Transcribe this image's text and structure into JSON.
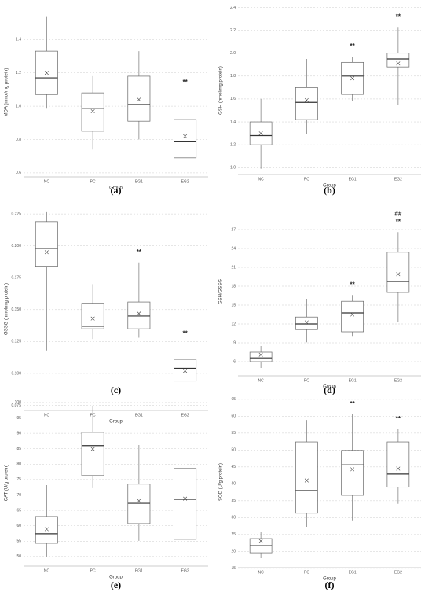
{
  "chart_data": [
    {
      "type": "box",
      "panel": "(a)",
      "ylabel": "MDA (nmol/mg protein)",
      "xlabel": "Group",
      "categories": [
        "NC",
        "PC",
        "EG1",
        "EG2"
      ],
      "min": [
        0.99,
        0.74,
        0.8,
        0.63
      ],
      "q1": [
        1.07,
        0.85,
        0.91,
        0.69
      ],
      "median": [
        1.17,
        0.985,
        1.01,
        0.79
      ],
      "q3": [
        1.33,
        1.08,
        1.18,
        0.92
      ],
      "max": [
        1.54,
        1.18,
        1.33,
        1.08
      ],
      "mean": [
        1.2,
        0.97,
        1.04,
        0.82
      ],
      "annotations": [
        null,
        null,
        null,
        [
          "**"
        ]
      ],
      "ylim": [
        0.576,
        1.59
      ],
      "yticks": [
        0.6,
        0.8,
        {
          "value": 1.0,
          "label": "1.0"
        },
        1.2,
        1.4
      ],
      "grid": true
    },
    {
      "type": "box",
      "panel": "(b)",
      "ylabel": "GSH (nmol/mg protein)",
      "xlabel": "Group",
      "categories": [
        "NC",
        "PC",
        "EG1",
        "EG2"
      ],
      "min": [
        0.99,
        1.29,
        1.58,
        1.55
      ],
      "q1": [
        1.2,
        1.42,
        1.64,
        1.88
      ],
      "median": [
        1.28,
        1.57,
        1.8,
        1.95
      ],
      "q3": [
        1.4,
        1.7,
        1.92,
        2.0
      ],
      "max": [
        1.6,
        1.95,
        1.97,
        2.23
      ],
      "mean": [
        1.3,
        1.59,
        1.78,
        1.91
      ],
      "annotations": [
        null,
        null,
        [
          "**"
        ],
        [
          "**"
        ]
      ],
      "ylim": [
        0.94,
        2.41
      ],
      "yticks": [
        {
          "value": 1.0,
          "label": "1.0"
        },
        1.2,
        1.4,
        1.6,
        1.8,
        {
          "value": 2.0,
          "label": "2.0"
        },
        2.2,
        2.4
      ],
      "grid": true
    },
    {
      "type": "box",
      "panel": "(c)",
      "ylabel": "GSSG (nmol/mg protein)",
      "xlabel": "Group",
      "categories": [
        "NC",
        "PC",
        "EG1",
        "EG2"
      ],
      "min": [
        0.118,
        0.127,
        0.128,
        0.08
      ],
      "q1": [
        0.184,
        0.135,
        0.135,
        0.094
      ],
      "median": [
        0.198,
        0.137,
        0.145,
        0.104
      ],
      "q3": [
        0.219,
        0.155,
        0.156,
        0.111
      ],
      "max": [
        0.227,
        0.17,
        0.187,
        0.123
      ],
      "mean": [
        0.195,
        0.143,
        0.147,
        0.102
      ],
      "annotations": [
        null,
        null,
        [
          "**"
        ],
        [
          "**"
        ]
      ],
      "ylim": [
        0.071,
        0.23
      ],
      "yticks": [
        0.075,
        {
          "value": 0.1,
          "label": "0.100"
        },
        0.125,
        {
          "value": 0.15,
          "label": "0.150"
        },
        0.175,
        {
          "value": 0.2,
          "label": "0.200"
        },
        0.225
      ],
      "grid": true
    },
    {
      "type": "box",
      "panel": "(d)",
      "ylabel": "GSH/GSSG",
      "xlabel": "Group",
      "categories": [
        "NC",
        "PC",
        "EG1",
        "EG2"
      ],
      "min": [
        5.0,
        9.1,
        10.1,
        12.25
      ],
      "q1": [
        6.0,
        11.1,
        10.75,
        17.0
      ],
      "median": [
        6.6,
        12.0,
        13.75,
        18.75
      ],
      "q3": [
        7.5,
        13.1,
        15.6,
        23.4
      ],
      "max": [
        8.5,
        16.0,
        16.6,
        26.6
      ],
      "mean": [
        7.1,
        12.25,
        13.5,
        19.9
      ],
      "annotations": [
        null,
        null,
        [
          "**"
        ],
        [
          "##",
          "**"
        ]
      ],
      "ylim": [
        3.75,
        30.5
      ],
      "yticks": [
        6,
        9,
        12,
        15,
        18,
        21,
        24,
        27
      ],
      "grid": true
    },
    {
      "type": "box",
      "panel": "(e)",
      "ylabel": "CAT (U/g protein)",
      "xlabel": "Group",
      "categories": [
        "NC",
        "PC",
        "EG1",
        "EG2"
      ],
      "min": [
        50,
        72.2,
        55.1,
        54.6
      ],
      "q1": [
        54.3,
        76.3,
        60.7,
        55.6
      ],
      "median": [
        57.4,
        86.0,
        67.3,
        68.6
      ],
      "q3": [
        63.0,
        90.3,
        73.5,
        78.6
      ],
      "max": [
        73.2,
        99.0,
        86.2,
        86.2
      ],
      "mean": [
        58.9,
        84.9,
        68.1,
        68.8
      ],
      "annotations": null,
      "ylim": [
        46.9,
        101
      ],
      "yticks": [
        50,
        55,
        60,
        65,
        70,
        75,
        80,
        85,
        90,
        95,
        100
      ],
      "grid": true
    },
    {
      "type": "box",
      "panel": "(f)",
      "ylabel": "SOD (U/g protein)",
      "xlabel": "Group",
      "categories": [
        "NC",
        "PC",
        "EG1",
        "EG2"
      ],
      "min": [
        18,
        27.3,
        29.2,
        34.1
      ],
      "q1": [
        19.6,
        31.3,
        36.6,
        39
      ],
      "median": [
        21.7,
        38,
        45.6,
        42.9
      ],
      "q3": [
        23.8,
        52.4,
        49.9,
        52.4
      ],
      "max": [
        25.7,
        58.9,
        60.6,
        56.2
      ],
      "mean": [
        23.1,
        41.0,
        44.3,
        44.5
      ],
      "annotations": [
        null,
        null,
        [
          "**"
        ],
        [
          "**"
        ]
      ],
      "ylim": [
        15.2,
        65.9
      ],
      "yticks": [
        15,
        20,
        25,
        30,
        35,
        40,
        45,
        50,
        55,
        60,
        65
      ],
      "grid": true
    }
  ]
}
